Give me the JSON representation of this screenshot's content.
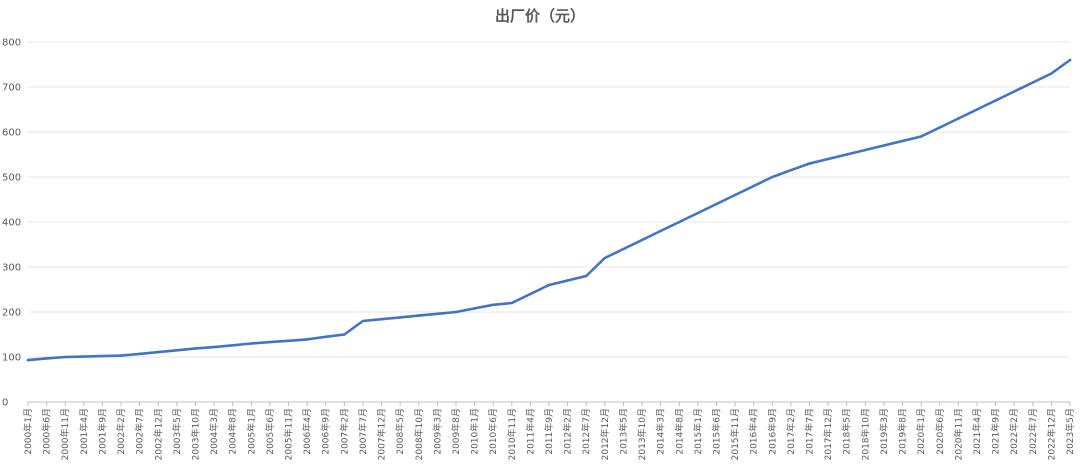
{
  "chart_data": {
    "type": "line",
    "title": "出厂价（元）",
    "xlabel": "",
    "ylabel": "",
    "ylim": [
      0,
      800
    ],
    "yticks": [
      0,
      100,
      200,
      300,
      400,
      500,
      600,
      700,
      800
    ],
    "grid": true,
    "legend": "none",
    "line_color": "#4472c4",
    "categories": [
      "2000年1月",
      "2000年6月",
      "2000年11月",
      "2001年4月",
      "2001年9月",
      "2002年2月",
      "2002年7月",
      "2002年12月",
      "2003年5月",
      "2003年10月",
      "2004年3月",
      "2004年8月",
      "2005年1月",
      "2005年6月",
      "2005年11月",
      "2006年4月",
      "2006年9月",
      "2007年2月",
      "2007年7月",
      "2007年12月",
      "2008年5月",
      "2008年10月",
      "2009年3月",
      "2009年8月",
      "2010年1月",
      "2010年6月",
      "2010年11月",
      "2011年4月",
      "2011年9月",
      "2012年2月",
      "2012年7月",
      "2012年12月",
      "2013年5月",
      "2013年10月",
      "2014年3月",
      "2014年8月",
      "2015年1月",
      "2015年6月",
      "2015年11月",
      "2016年4月",
      "2016年9月",
      "2017年2月",
      "2017年7月",
      "2017年12月",
      "2018年5月",
      "2018年10月",
      "2019年3月",
      "2019年8月",
      "2020年1月",
      "2020年6月",
      "2020年11月",
      "2021年4月",
      "2021年9月",
      "2022年2月",
      "2022年7月",
      "2022年12月",
      "2023年5月"
    ],
    "series": [
      {
        "values": [
          93,
          97,
          100,
          101,
          102,
          103,
          107,
          111,
          115,
          119,
          122,
          126,
          130,
          133,
          136,
          139,
          145,
          150,
          180,
          184,
          188,
          192,
          196,
          200,
          208,
          216,
          220,
          240,
          260,
          270,
          280,
          320,
          340,
          360,
          380,
          400,
          420,
          440,
          460,
          480,
          500,
          515,
          530,
          540,
          550,
          560,
          570,
          580,
          590,
          610,
          630,
          650,
          670,
          690,
          710,
          730,
          760
        ]
      }
    ]
  }
}
